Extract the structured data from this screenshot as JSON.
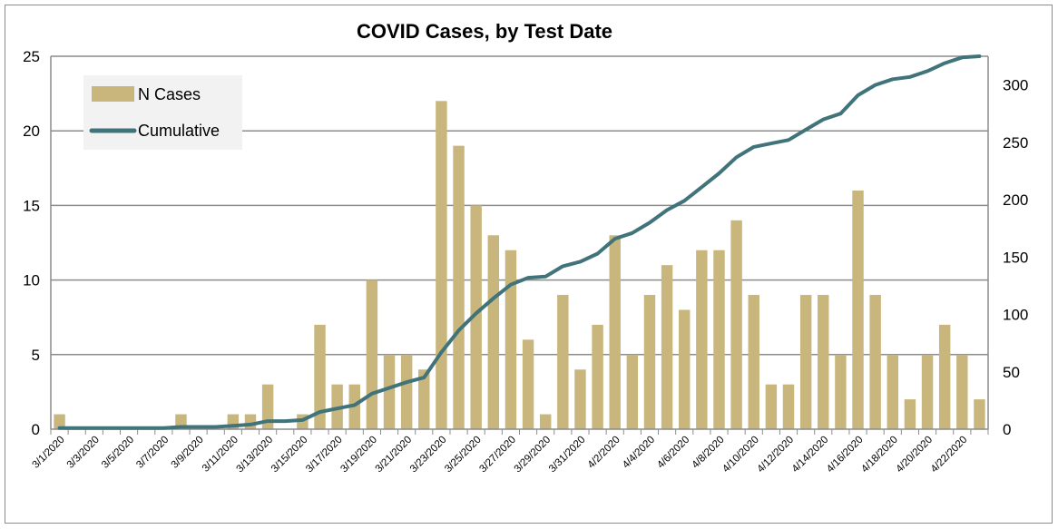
{
  "chart_data": {
    "type": "bar+line",
    "title": "COVID Cases, by Test Date",
    "xlabel": "",
    "ylabel": "",
    "ylim": [
      0,
      25
    ],
    "y2lim": [
      0,
      325
    ],
    "yticks": [
      0,
      5,
      10,
      15,
      20,
      25
    ],
    "y2ticks": [
      0,
      50,
      100,
      150,
      200,
      250,
      300
    ],
    "grid": "horizontal",
    "legend_position": "top-left",
    "colors": {
      "bars": "#c8b67d",
      "line": "#40747a",
      "grid": "#8c8c8c",
      "legend_bg": "#f2f2f2"
    },
    "categories": [
      "3/1/2020",
      "3/2/2020",
      "3/3/2020",
      "3/4/2020",
      "3/5/2020",
      "3/6/2020",
      "3/7/2020",
      "3/8/2020",
      "3/9/2020",
      "3/10/2020",
      "3/11/2020",
      "3/12/2020",
      "3/13/2020",
      "3/14/2020",
      "3/15/2020",
      "3/16/2020",
      "3/17/2020",
      "3/18/2020",
      "3/19/2020",
      "3/20/2020",
      "3/21/2020",
      "3/22/2020",
      "3/23/2020",
      "3/24/2020",
      "3/25/2020",
      "3/26/2020",
      "3/27/2020",
      "3/28/2020",
      "3/29/2020",
      "3/30/2020",
      "3/31/2020",
      "4/1/2020",
      "4/2/2020",
      "4/3/2020",
      "4/4/2020",
      "4/5/2020",
      "4/6/2020",
      "4/7/2020",
      "4/8/2020",
      "4/9/2020",
      "4/10/2020",
      "4/11/2020",
      "4/12/2020",
      "4/13/2020",
      "4/14/2020",
      "4/15/2020",
      "4/16/2020",
      "4/17/2020",
      "4/18/2020",
      "4/19/2020",
      "4/20/2020",
      "4/21/2020",
      "4/22/2020",
      "4/23/2020"
    ],
    "x_tick_labels": [
      "3/1/2020",
      "3/3/2020",
      "3/5/2020",
      "3/7/2020",
      "3/9/2020",
      "3/11/2020",
      "3/13/2020",
      "3/15/2020",
      "3/17/2020",
      "3/19/2020",
      "3/21/2020",
      "3/23/2020",
      "3/25/2020",
      "3/27/2020",
      "3/29/2020",
      "3/31/2020",
      "4/2/2020",
      "4/4/2020",
      "4/6/2020",
      "4/8/2020",
      "4/10/2020",
      "4/12/2020",
      "4/14/2020",
      "4/16/2020",
      "4/18/2020",
      "4/20/2020",
      "4/22/2020"
    ],
    "series": [
      {
        "name": "N Cases",
        "type": "bar",
        "axis": "left",
        "values": [
          1,
          0,
          0,
          0,
          0,
          0,
          0,
          1,
          0,
          0,
          1,
          1,
          3,
          0,
          1,
          7,
          3,
          3,
          10,
          5,
          5,
          4,
          22,
          19,
          15,
          13,
          12,
          6,
          1,
          9,
          4,
          7,
          13,
          5,
          9,
          11,
          8,
          12,
          12,
          14,
          9,
          3,
          3,
          9,
          9,
          5,
          16,
          9,
          5,
          2,
          5,
          7,
          5,
          2
        ]
      },
      {
        "name": "Cumulative",
        "type": "line",
        "axis": "right",
        "values": [
          1,
          1,
          1,
          1,
          1,
          1,
          1,
          2,
          2,
          2,
          3,
          4,
          7,
          7,
          8,
          15,
          18,
          21,
          31,
          36,
          41,
          45,
          67,
          86,
          101,
          114,
          126,
          132,
          133,
          142,
          146,
          153,
          166,
          171,
          180,
          191,
          199,
          211,
          223,
          237,
          246,
          249,
          252,
          261,
          270,
          275,
          291,
          300,
          305,
          307,
          312,
          319,
          324,
          326
        ]
      }
    ]
  }
}
